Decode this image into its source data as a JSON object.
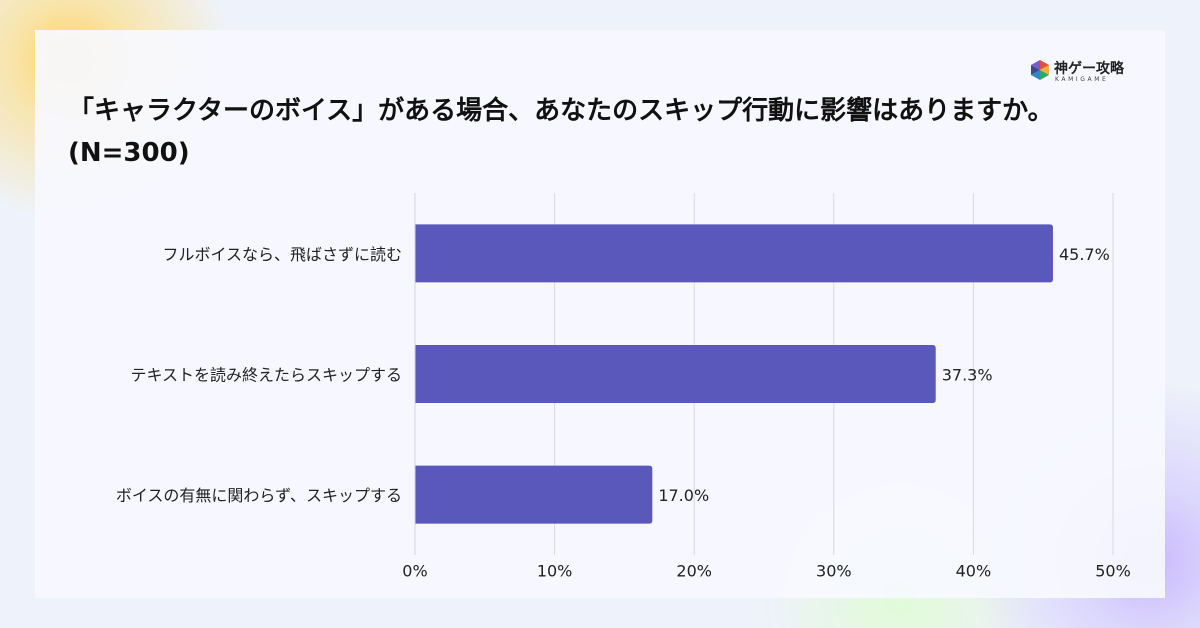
{
  "brand": {
    "name": "神ゲー攻略",
    "sub": "KAMIGAME"
  },
  "chart_data": {
    "type": "bar",
    "orientation": "horizontal",
    "title": "「キャラクターのボイス」がある場合、あなたのスキップ行動に影響はありますか。(N=300)",
    "categories": [
      "フルボイスなら、飛ばさずに読む",
      "テキストを読み終えたらスキップする",
      "ボイスの有無に関わらず、スキップする"
    ],
    "values": [
      45.7,
      37.3,
      17.0
    ],
    "value_labels": [
      "45.7%",
      "37.3%",
      "17.0%"
    ],
    "color": "#5a58bb",
    "xlim": [
      0,
      50
    ],
    "xticks": [
      {
        "value": 0,
        "label": "0%"
      },
      {
        "value": 10,
        "label": "10%"
      },
      {
        "value": 20,
        "label": "20%"
      },
      {
        "value": 30,
        "label": "30%"
      },
      {
        "value": 40,
        "label": "40%"
      },
      {
        "value": 50,
        "label": "50%"
      }
    ],
    "grid": true
  }
}
